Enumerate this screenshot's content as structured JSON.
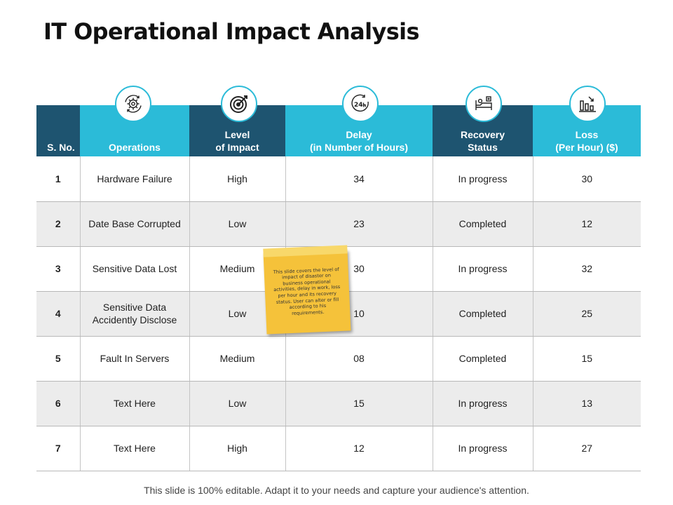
{
  "title": "IT Operational Impact Analysis",
  "colors": {
    "header_dark": "#1e5470",
    "header_light": "#2bbbd8",
    "high": "#e0241b",
    "low": "#2f8f3a",
    "medium": "#e9b800",
    "note": "#f5c23a"
  },
  "header_icons": [
    "gear-cycle-icon",
    "target-icon",
    "clock-24h-icon",
    "recovery-bed-icon",
    "bar-chart-down-icon"
  ],
  "columns": [
    {
      "label": "S. No."
    },
    {
      "label": "Operations"
    },
    {
      "line1": "Level",
      "line2": "of Impact"
    },
    {
      "line1": "Delay",
      "line2": "(in Number of Hours)"
    },
    {
      "line1": "Recovery",
      "line2": "Status"
    },
    {
      "line1": "Loss",
      "line2": "(Per Hour) ($)"
    }
  ],
  "rows": [
    {
      "sno": "1",
      "operation": "Hardware Failure",
      "level": "High",
      "delay": "34",
      "status": "In progress",
      "loss": "30"
    },
    {
      "sno": "2",
      "operation": "Date Base Corrupted",
      "level": "Low",
      "delay": "23",
      "status": "Completed",
      "loss": "12"
    },
    {
      "sno": "3",
      "operation": "Sensitive Data Lost",
      "level": "Medium",
      "delay": "30",
      "status": "In progress",
      "loss": "32"
    },
    {
      "sno": "4",
      "operation_line1": "Sensitive Data",
      "operation_line2": "Accidently Disclose",
      "level": "Low",
      "delay": "10",
      "status": "Completed",
      "loss": "25"
    },
    {
      "sno": "5",
      "operation": "Fault In Servers",
      "level": "Medium",
      "delay": "08",
      "status": "Completed",
      "loss": "15"
    },
    {
      "sno": "6",
      "operation": "Text Here",
      "level": "Low",
      "delay": "15",
      "status": "In progress",
      "loss": "13"
    },
    {
      "sno": "7",
      "operation": "Text Here",
      "level": "High",
      "delay": "12",
      "status": "In progress",
      "loss": "27"
    }
  ],
  "sticky_note": "This slide covers the level of impact of disaster on business operational activities, delay in work, loss per hour and its recovery status. User can alter or fill according to his requirements.",
  "footer": "This slide is 100% editable. Adapt it to your needs and capture your audience's attention."
}
